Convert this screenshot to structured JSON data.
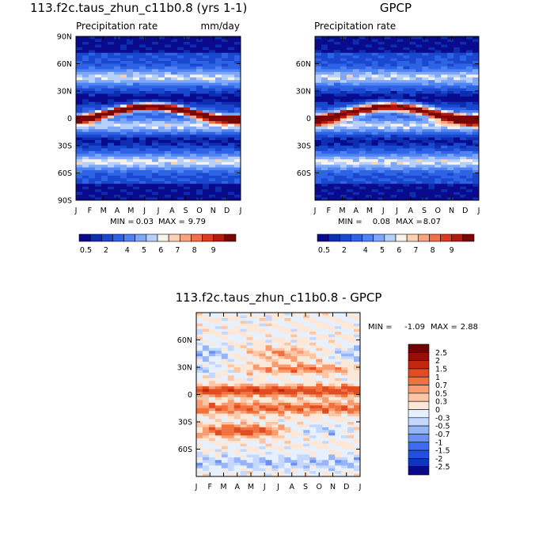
{
  "panel1": {
    "title": "113.f2c.taus_zhun_c11b0.8 (yrs 1-1)",
    "subtitle_left": "Precipitation rate",
    "subtitle_right": "mm/day",
    "min_label": "MIN =",
    "min_value": "0.03",
    "max_label": "MAX =",
    "max_value": "9.79"
  },
  "panel2": {
    "title": "GPCP",
    "subtitle_left": "Precipitation rate",
    "min_label": "MIN =",
    "min_value": "0.08",
    "max_label": "MAX =",
    "max_value": "8.07"
  },
  "panel3": {
    "title": "113.f2c.taus_zhun_c11b0.8 - GPCP",
    "min_label": "MIN =",
    "min_value": "-1.09",
    "max_label": "MAX =",
    "max_value": "2.88"
  },
  "colors": {
    "precip": [
      "#0a0a8c",
      "#0d2eb0",
      "#1a47cf",
      "#2f63e6",
      "#4f82f2",
      "#7ea8f7",
      "#b6d0fb",
      "#f7f2ea",
      "#fbd0b4",
      "#f8a47e",
      "#f27049",
      "#dc3b21",
      "#b4190f",
      "#7a0705"
    ],
    "diff": [
      "#0a0a8c",
      "#1033c2",
      "#2350e0",
      "#3d6cf0",
      "#6a90f5",
      "#96b4f9",
      "#c3d8fc",
      "#e6f0fe",
      "#fde8d8",
      "#fbc6a6",
      "#f89c72",
      "#f2723f",
      "#e04d23",
      "#c4270e",
      "#980d06",
      "#700402"
    ]
  },
  "chart_data": [
    {
      "type": "heatmap",
      "title": "113.f2c.taus_zhun_c11b0.8 (yrs 1-1)",
      "variable": "Precipitation rate",
      "units": "mm/day",
      "x_tick_labels": [
        "J",
        "F",
        "M",
        "A",
        "M",
        "J",
        "J",
        "A",
        "S",
        "O",
        "N",
        "D",
        "J"
      ],
      "y_tick_labels": [
        "90N",
        "60N",
        "30N",
        "0",
        "30S",
        "60S",
        "90S"
      ],
      "y_tick_values": [
        90,
        60,
        30,
        0,
        -30,
        -60,
        -90
      ],
      "colorbar_labels": [
        "0.5",
        "2",
        "4",
        "5",
        "6",
        "7",
        "8",
        "9"
      ],
      "colorbar_levels": [
        0.5,
        1,
        2,
        3,
        4,
        5,
        6,
        7,
        8,
        9
      ],
      "min": 0.03,
      "max": 9.79
    },
    {
      "type": "heatmap",
      "title": "GPCP",
      "variable": "Precipitation rate",
      "x_tick_labels": [
        "J",
        "F",
        "M",
        "A",
        "M",
        "J",
        "J",
        "A",
        "S",
        "O",
        "N",
        "D",
        "J"
      ],
      "y_tick_labels": [
        "60N",
        "30N",
        "0",
        "30S",
        "60S"
      ],
      "y_tick_values": [
        60,
        30,
        0,
        -30,
        -60
      ],
      "colorbar_labels": [
        "0.5",
        "2",
        "4",
        "5",
        "6",
        "7",
        "8",
        "9"
      ],
      "colorbar_levels": [
        0.5,
        1,
        2,
        3,
        4,
        5,
        6,
        7,
        8,
        9
      ],
      "min": 0.08,
      "max": 8.07
    },
    {
      "type": "heatmap",
      "title": "113.f2c.taus_zhun_c11b0.8 - GPCP",
      "x_tick_labels": [
        "J",
        "F",
        "M",
        "A",
        "M",
        "J",
        "J",
        "A",
        "S",
        "O",
        "N",
        "D",
        "J"
      ],
      "y_tick_labels": [
        "60N",
        "30N",
        "0",
        "30S",
        "60S"
      ],
      "y_tick_values": [
        60,
        30,
        0,
        -30,
        -60
      ],
      "colorbar_labels": [
        "2.5",
        "2",
        "1.5",
        "1",
        "0.7",
        "0.5",
        "0.3",
        "0",
        "-0.3",
        "-0.5",
        "-0.7",
        "-1",
        "-1.5",
        "-2",
        "-2.5"
      ],
      "min": -1.09,
      "max": 2.88
    }
  ]
}
